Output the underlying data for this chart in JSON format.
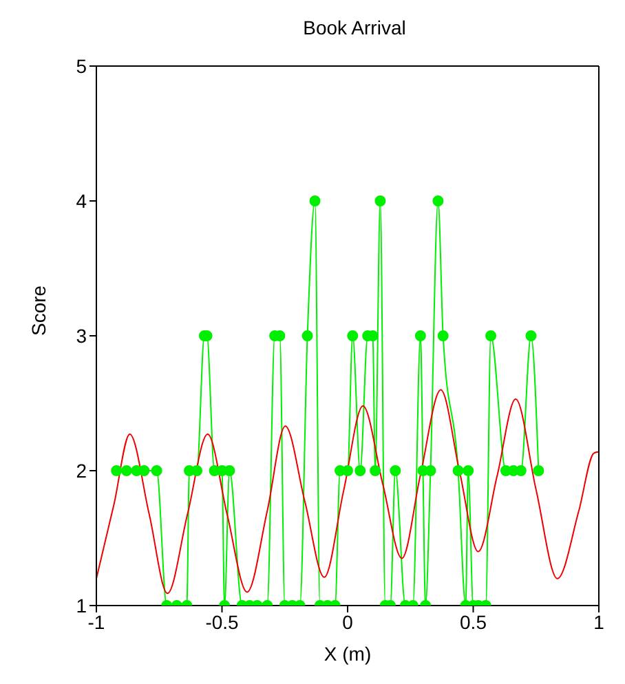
{
  "chart_data": {
    "type": "line",
    "title": "Book Arrival",
    "xlabel": "X (m)",
    "ylabel": "Score",
    "xlim": [
      -1,
      1
    ],
    "xticks": [
      -1,
      -0.5,
      0,
      0.5,
      1
    ],
    "ylim": [
      1,
      5
    ],
    "yticks": [
      1,
      2,
      3,
      4,
      5
    ],
    "series": [
      {
        "color": "#00ee00",
        "marker": "circle",
        "x": [
          -0.92,
          -0.88,
          -0.84,
          -0.81,
          -0.76,
          -0.72,
          -0.68,
          -0.64,
          -0.63,
          -0.6,
          -0.57,
          -0.56,
          -0.53,
          -0.5,
          -0.49,
          -0.47,
          -0.42,
          -0.39,
          -0.36,
          -0.32,
          -0.29,
          -0.27,
          -0.25,
          -0.22,
          -0.19,
          -0.16,
          -0.13,
          -0.11,
          -0.08,
          -0.05,
          -0.03,
          0,
          0.02,
          0.05,
          0.08,
          0.1,
          0.11,
          0.13,
          0.15,
          0.17,
          0.19,
          0.23,
          0.26,
          0.29,
          0.3,
          0.31,
          0.33,
          0.36,
          0.38,
          0.44,
          0.47,
          0.48,
          0.5,
          0.52,
          0.55,
          0.57,
          0.63,
          0.66,
          0.69,
          0.73,
          0.76
        ],
        "values": [
          2,
          2,
          2,
          2,
          2,
          1,
          1,
          1,
          2,
          2,
          3,
          3,
          2,
          2,
          1,
          2,
          1,
          1,
          1,
          1,
          3,
          3,
          1,
          1,
          1,
          3,
          4,
          1,
          1,
          1,
          2,
          2,
          3,
          2,
          3,
          3,
          2,
          4,
          1,
          1,
          2,
          1,
          1,
          3,
          2,
          1,
          2,
          4,
          3,
          2,
          1,
          2,
          1,
          1,
          1,
          3,
          2,
          2,
          2,
          3,
          2
        ]
      },
      {
        "color": "#ee0000",
        "marker": "none",
        "x": [
          -1,
          -0.93,
          -0.867,
          -0.79,
          -0.717,
          -0.637,
          -0.557,
          -0.48,
          -0.4,
          -0.32,
          -0.248,
          -0.17,
          -0.093,
          -0.016,
          0.061,
          0.14,
          0.216,
          0.29,
          0.371,
          0.445,
          0.52,
          0.595,
          0.669,
          0.75,
          0.835,
          0.92,
          0.98,
          1
        ],
        "values": [
          1.2,
          1.75,
          2.27,
          1.68,
          1.09,
          1.68,
          2.27,
          1.68,
          1.1,
          1.7,
          2.33,
          1.77,
          1.21,
          1.85,
          2.48,
          1.9,
          1.35,
          1.97,
          2.6,
          2,
          1.4,
          1.96,
          2.53,
          1.86,
          1.2,
          1.7,
          2.13,
          2.14
        ]
      }
    ]
  }
}
